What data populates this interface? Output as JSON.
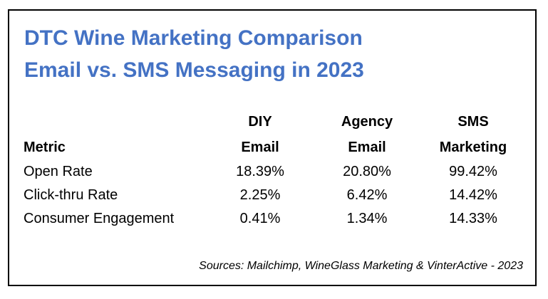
{
  "title": {
    "line1": "DTC Wine Marketing Comparison",
    "line2": "Email vs. SMS Messaging in 2023"
  },
  "table": {
    "headers": {
      "metric": "Metric",
      "diy_line1": "DIY",
      "diy_line2": "Email",
      "agency_line1": "Agency",
      "agency_line2": "Email",
      "sms_line1": "SMS",
      "sms_line2": "Marketing"
    },
    "rows": [
      {
        "metric": "Open Rate",
        "diy": "18.39%",
        "agency": "20.80%",
        "sms": "99.42%"
      },
      {
        "metric": "Click-thru Rate",
        "diy": "2.25%",
        "agency": "6.42%",
        "sms": "14.42%"
      },
      {
        "metric": "Consumer Engagement",
        "diy": "0.41%",
        "agency": "1.34%",
        "sms": "14.33%"
      }
    ]
  },
  "sources": "Sources: Mailchimp, WineGlass Marketing & VinterActive - 2023",
  "colors": {
    "title": "#4472c4",
    "text": "#000000",
    "border": "#000000"
  }
}
